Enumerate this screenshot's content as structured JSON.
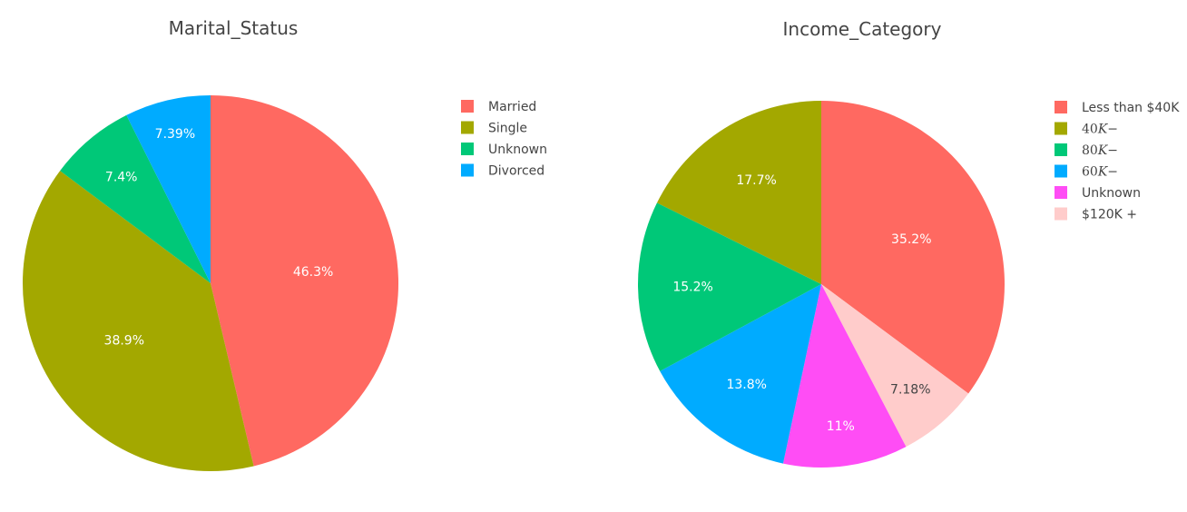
{
  "chart_data": [
    {
      "type": "pie",
      "title": "Marital_Status",
      "categories": [
        "Married",
        "Single",
        "Unknown",
        "Divorced"
      ],
      "values": [
        46.3,
        38.9,
        7.4,
        7.39
      ],
      "labels": [
        "46.3%",
        "38.9%",
        "7.4%",
        "7.39%"
      ],
      "colors": [
        "#FF6961",
        "#A3A800",
        "#00C878",
        "#00ABFF"
      ],
      "legend_placement": "right",
      "direction": "clockwise",
      "start_angle": "top"
    },
    {
      "type": "pie",
      "title": "Income_Category",
      "categories": [
        "Less than $40K",
        "$120K +",
        "Unknown",
        "60K−",
        "80K−",
        "40K−"
      ],
      "values": [
        35.2,
        7.18,
        11,
        13.8,
        15.2,
        17.7
      ],
      "labels": [
        "35.2%",
        "7.18%",
        "11%",
        "13.8%",
        "15.2%",
        "17.7%"
      ],
      "colors": [
        "#FF6961",
        "#FFCCCB",
        "#FF4DF5",
        "#00ABFF",
        "#00C878",
        "#A3A800"
      ],
      "legend_order": [
        "Less than $40K",
        "40K−",
        "80K−",
        "60K−",
        "Unknown",
        "$120K +"
      ],
      "legend_placement": "right",
      "direction": "clockwise",
      "start_angle": "top"
    }
  ]
}
